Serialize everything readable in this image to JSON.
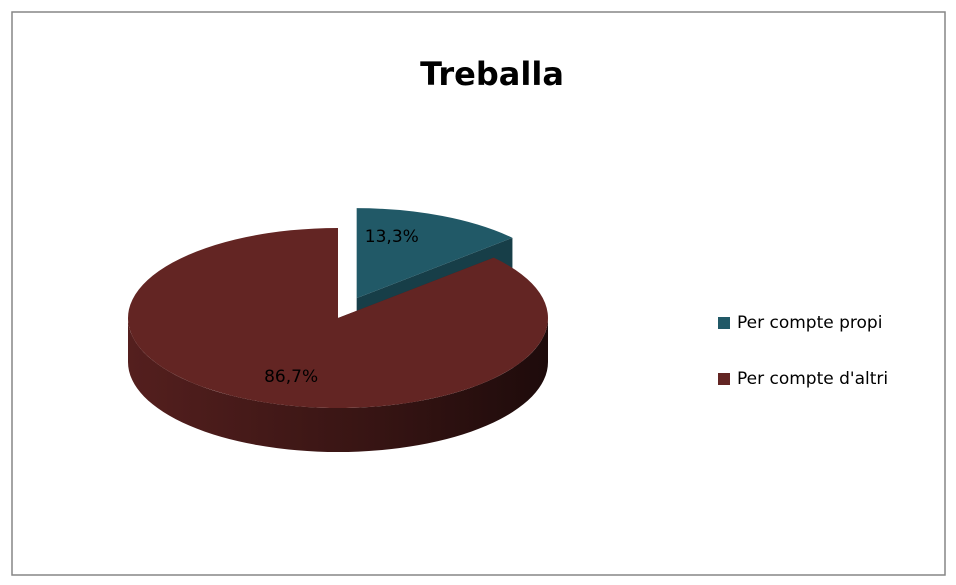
{
  "chart_data": {
    "type": "pie",
    "title": "Treballa",
    "categories": [
      "Per compte propi",
      "Per compte d'altri"
    ],
    "values": [
      13.3,
      86.7
    ],
    "value_labels": [
      "13,3%",
      "86,7%"
    ],
    "colors": [
      "#215967",
      "#632523"
    ],
    "legend": "right"
  }
}
